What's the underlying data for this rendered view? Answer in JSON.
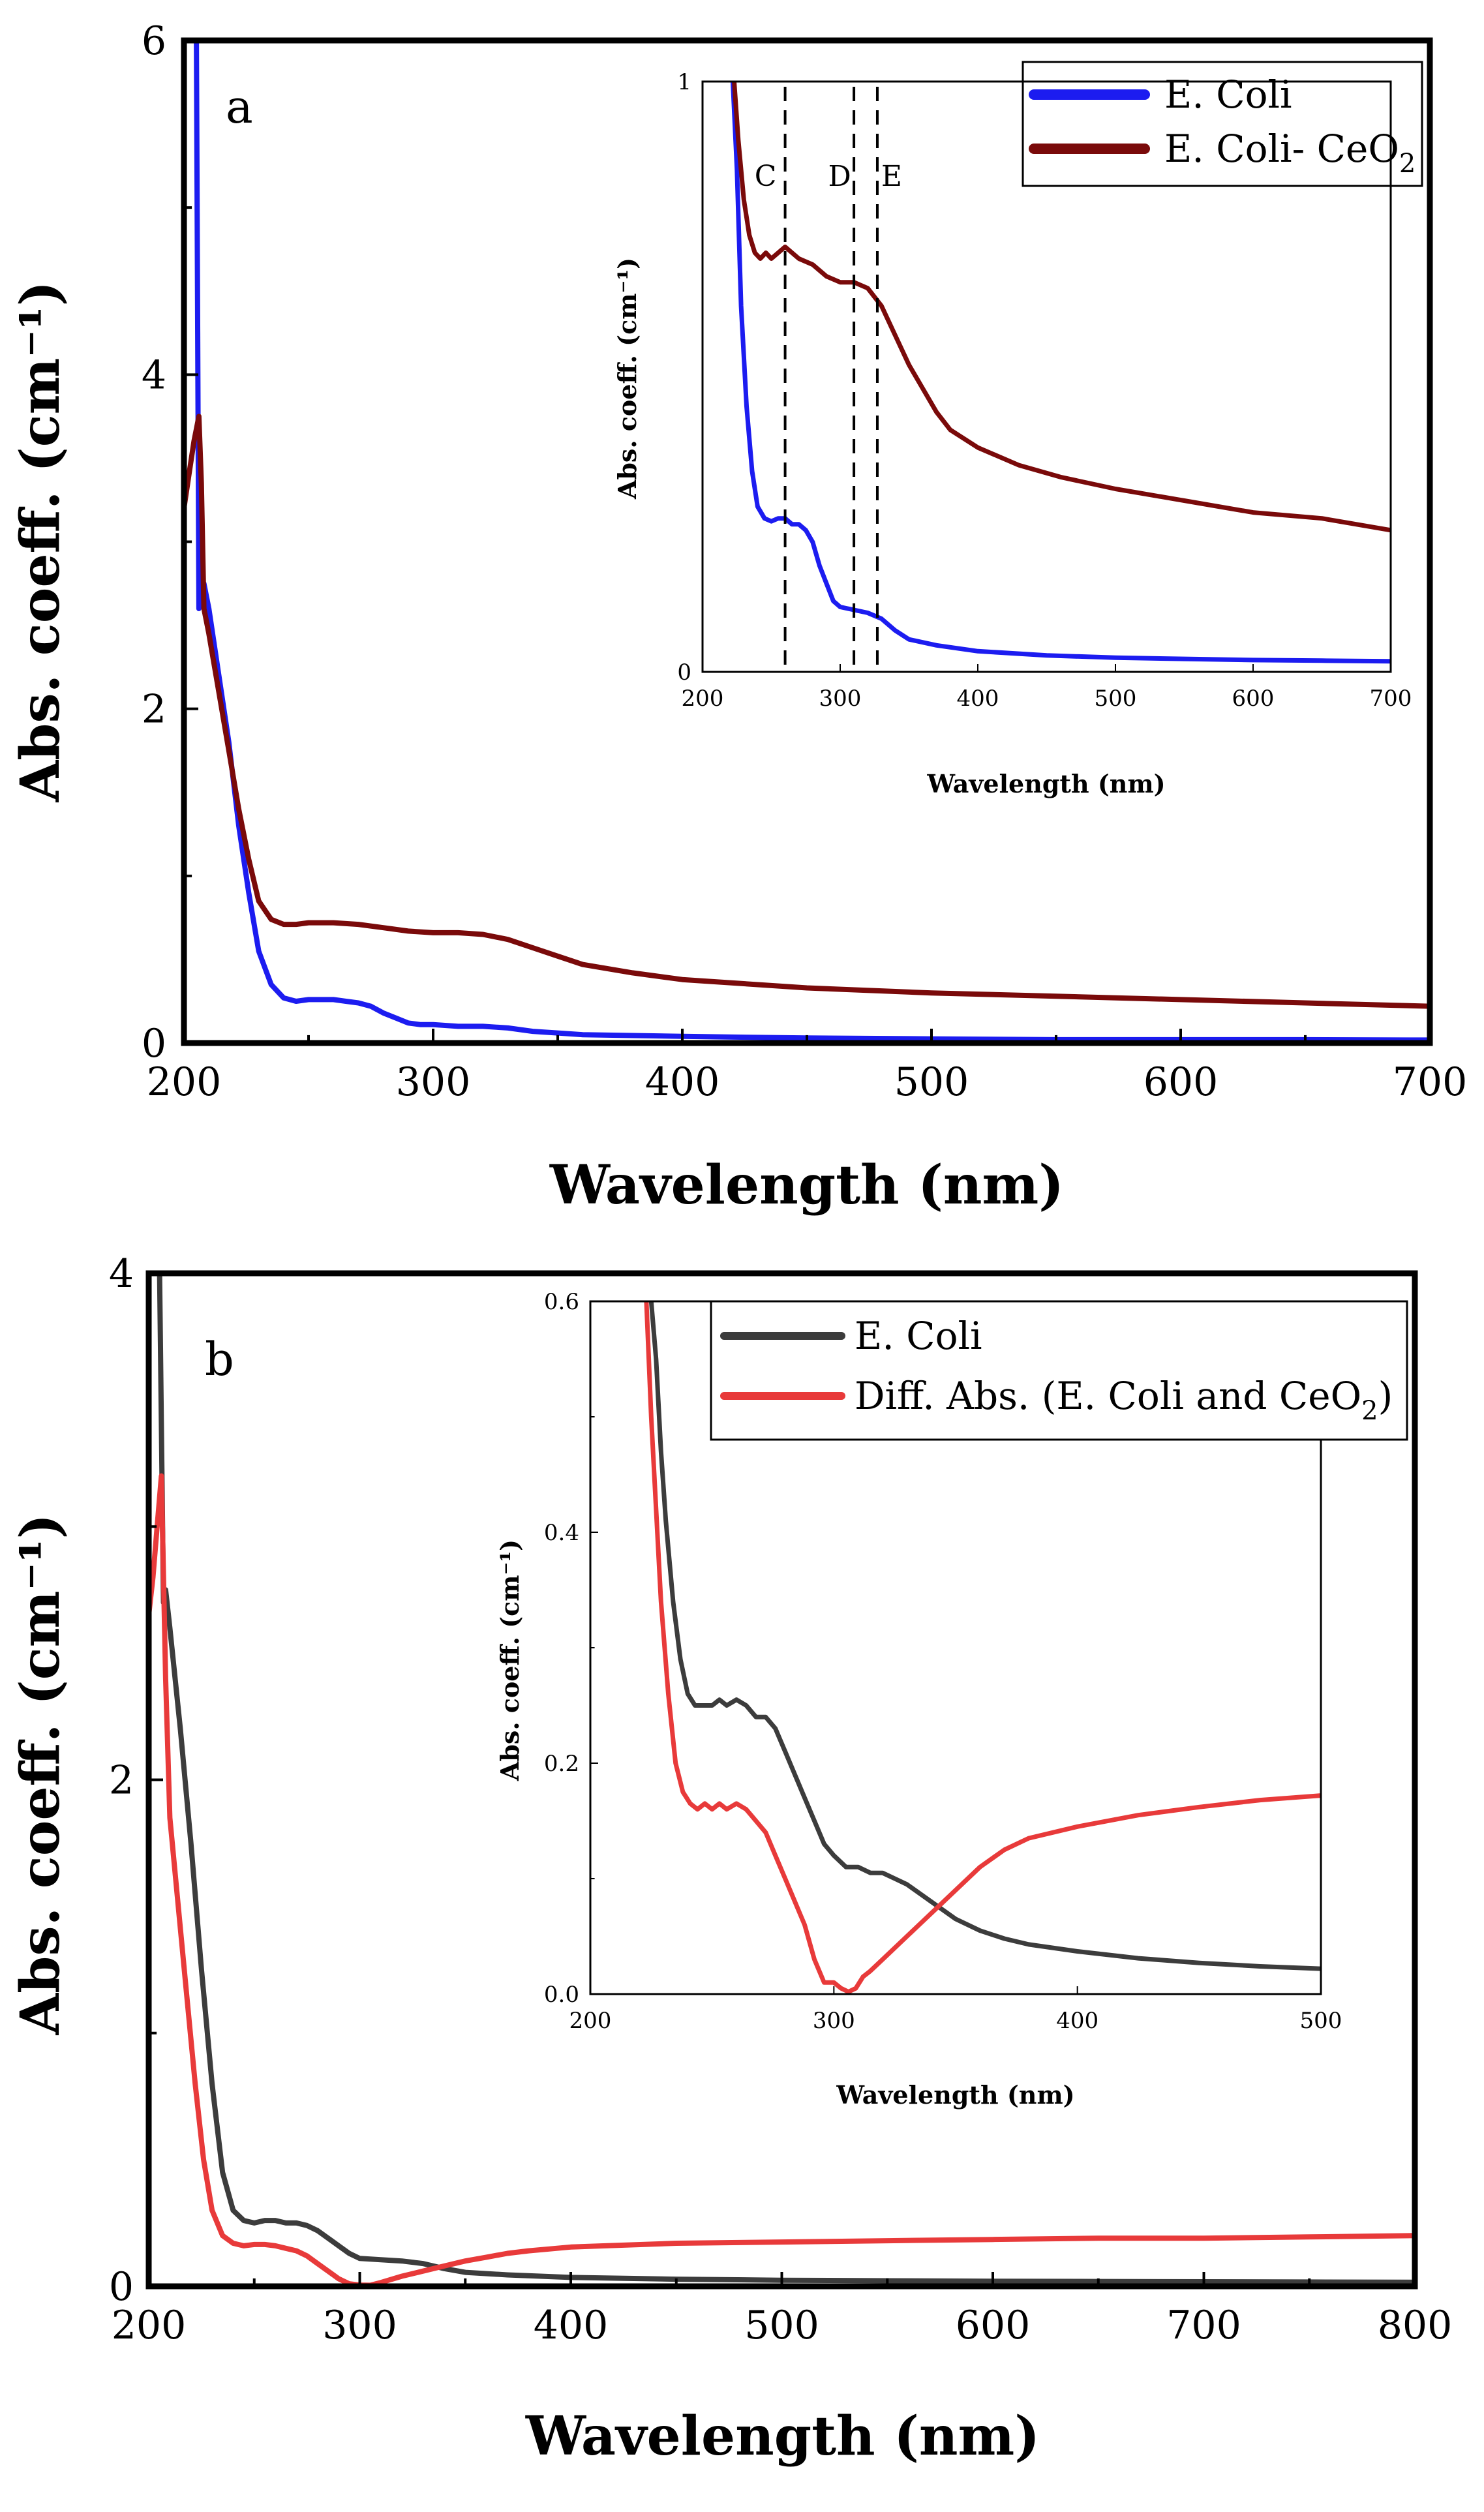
{
  "colors": {
    "blue": "#1c1cf0",
    "maroon": "#7a0a0a",
    "gray": "#3c3c3c",
    "red": "#e83a3a",
    "axis": "#000000",
    "background": "#ffffff"
  },
  "chart_data": [
    {
      "id": "a",
      "type": "line",
      "panel_label": "a",
      "xlabel": "Wavelength (nm)",
      "ylabel": "Abs. coeff. (cm⁻¹)",
      "xlim": [
        200,
        700
      ],
      "ylim": [
        0,
        6
      ],
      "xticks": [
        200,
        300,
        400,
        500,
        600,
        700
      ],
      "yticks": [
        0,
        2,
        4,
        6
      ],
      "legend_position": "top-right",
      "series": [
        {
          "name": "E. Coli",
          "legend_label": "E. Coli",
          "color": "#1c1cf0",
          "x": [
            200,
            201,
            202,
            203,
            204,
            205,
            206,
            208,
            210,
            214,
            218,
            222,
            226,
            230,
            235,
            240,
            245,
            250,
            255,
            260,
            265,
            270,
            275,
            280,
            285,
            290,
            295,
            300,
            310,
            320,
            330,
            340,
            350,
            360,
            380,
            400,
            450,
            500,
            550,
            600,
            650,
            700
          ],
          "y": [
            6.6,
            6.6,
            6.4,
            6.3,
            6.2,
            6.0,
            2.6,
            2.75,
            2.6,
            2.2,
            1.8,
            1.3,
            0.9,
            0.55,
            0.35,
            0.27,
            0.25,
            0.26,
            0.26,
            0.26,
            0.25,
            0.24,
            0.22,
            0.18,
            0.15,
            0.12,
            0.11,
            0.11,
            0.1,
            0.1,
            0.09,
            0.07,
            0.06,
            0.05,
            0.045,
            0.04,
            0.03,
            0.025,
            0.02,
            0.02,
            0.02,
            0.018
          ]
        },
        {
          "name": "E. Coli- CeO2",
          "legend_label": "E. Coli- CeO",
          "legend_sub": "2",
          "color": "#7a0a0a",
          "x": [
            200,
            202,
            204,
            206,
            207,
            208,
            210,
            214,
            218,
            222,
            226,
            230,
            235,
            240,
            245,
            250,
            255,
            260,
            270,
            280,
            290,
            300,
            310,
            320,
            330,
            340,
            350,
            360,
            380,
            400,
            450,
            500,
            550,
            600,
            650,
            700
          ],
          "y": [
            3.2,
            3.4,
            3.6,
            3.75,
            3.35,
            2.6,
            2.45,
            2.1,
            1.75,
            1.4,
            1.1,
            0.85,
            0.74,
            0.71,
            0.71,
            0.72,
            0.72,
            0.72,
            0.71,
            0.69,
            0.67,
            0.66,
            0.66,
            0.65,
            0.62,
            0.57,
            0.52,
            0.47,
            0.42,
            0.38,
            0.33,
            0.3,
            0.28,
            0.26,
            0.24,
            0.22
          ]
        }
      ]
    },
    {
      "id": "a_inset",
      "type": "line",
      "xlabel": "Wavelength (nm)",
      "ylabel": "Abs. coeff. (cm⁻¹)",
      "xlim": [
        200,
        700
      ],
      "ylim": [
        0,
        1
      ],
      "xticks": [
        200,
        300,
        400,
        500,
        600,
        700
      ],
      "yticks": [
        0,
        1
      ],
      "annotations": [
        {
          "label": "C",
          "x": 260
        },
        {
          "label": "D",
          "x": 310
        },
        {
          "label": "E",
          "x": 327
        }
      ],
      "series": [
        {
          "name": "E. Coli",
          "color": "#1c1cf0",
          "x": [
            222,
            225,
            228,
            232,
            236,
            240,
            245,
            250,
            255,
            260,
            265,
            270,
            275,
            280,
            285,
            290,
            295,
            300,
            310,
            320,
            330,
            340,
            350,
            370,
            400,
            450,
            500,
            550,
            600,
            650,
            700
          ],
          "y": [
            1.0,
            0.85,
            0.62,
            0.45,
            0.34,
            0.28,
            0.26,
            0.255,
            0.26,
            0.26,
            0.25,
            0.25,
            0.24,
            0.22,
            0.18,
            0.15,
            0.12,
            0.11,
            0.105,
            0.1,
            0.09,
            0.07,
            0.055,
            0.045,
            0.035,
            0.028,
            0.024,
            0.022,
            0.02,
            0.019,
            0.018
          ]
        },
        {
          "name": "E. Coli- CeO2",
          "color": "#7a0a0a",
          "x": [
            223,
            226,
            230,
            234,
            238,
            242,
            246,
            250,
            255,
            260,
            265,
            270,
            280,
            290,
            300,
            310,
            320,
            330,
            340,
            350,
            360,
            370,
            380,
            400,
            430,
            460,
            500,
            550,
            600,
            650,
            700
          ],
          "y": [
            1.0,
            0.9,
            0.8,
            0.74,
            0.71,
            0.7,
            0.71,
            0.7,
            0.71,
            0.72,
            0.71,
            0.7,
            0.69,
            0.67,
            0.66,
            0.66,
            0.65,
            0.62,
            0.57,
            0.52,
            0.48,
            0.44,
            0.41,
            0.38,
            0.35,
            0.33,
            0.31,
            0.29,
            0.27,
            0.26,
            0.24
          ]
        }
      ]
    },
    {
      "id": "b",
      "type": "line",
      "panel_label": "b",
      "xlabel": "Wavelength (nm)",
      "ylabel": "Abs. coeff. (cm⁻¹)",
      "xlim": [
        200,
        800
      ],
      "ylim": [
        0,
        4
      ],
      "xticks": [
        200,
        300,
        400,
        500,
        600,
        700,
        800
      ],
      "yticks": [
        0,
        2,
        4
      ],
      "legend_position": "top-right",
      "series": [
        {
          "name": "E. Coli",
          "color": "#3c3c3c",
          "x": [
            205,
            206,
            207,
            208,
            210,
            215,
            220,
            225,
            230,
            235,
            240,
            245,
            250,
            255,
            260,
            265,
            270,
            275,
            280,
            285,
            290,
            295,
            300,
            310,
            320,
            330,
            340,
            350,
            370,
            400,
            450,
            500,
            550,
            600,
            650,
            700,
            750,
            800
          ],
          "y": [
            4.1,
            3.4,
            2.7,
            2.75,
            2.6,
            2.2,
            1.75,
            1.25,
            0.8,
            0.45,
            0.3,
            0.26,
            0.25,
            0.26,
            0.26,
            0.25,
            0.25,
            0.24,
            0.22,
            0.19,
            0.16,
            0.13,
            0.11,
            0.105,
            0.1,
            0.09,
            0.07,
            0.055,
            0.045,
            0.035,
            0.028,
            0.024,
            0.022,
            0.02,
            0.019,
            0.018,
            0.017,
            0.016
          ]
        },
        {
          "name": "Diff. Abs. (E. Coli and CeO2)",
          "color": "#e83a3a",
          "x": [
            200,
            202,
            204,
            206,
            208,
            210,
            214,
            218,
            222,
            226,
            230,
            235,
            240,
            245,
            250,
            255,
            260,
            265,
            270,
            275,
            280,
            285,
            290,
            295,
            300,
            305,
            310,
            320,
            330,
            340,
            350,
            360,
            370,
            380,
            400,
            450,
            500,
            550,
            600,
            650,
            700,
            750,
            800
          ],
          "y": [
            2.65,
            2.8,
            3.0,
            3.2,
            2.4,
            1.85,
            1.5,
            1.15,
            0.8,
            0.5,
            0.3,
            0.2,
            0.17,
            0.16,
            0.165,
            0.165,
            0.16,
            0.15,
            0.14,
            0.12,
            0.09,
            0.06,
            0.03,
            0.01,
            0.005,
            0.004,
            0.015,
            0.04,
            0.06,
            0.08,
            0.1,
            0.115,
            0.13,
            0.14,
            0.155,
            0.17,
            0.175,
            0.18,
            0.185,
            0.19,
            0.19,
            0.195,
            0.2
          ]
        }
      ]
    },
    {
      "id": "b_inset",
      "type": "line",
      "xlabel": "Wavelength (nm)",
      "ylabel": "Abs. coeff. (cm⁻¹)",
      "xlim": [
        200,
        500
      ],
      "ylim": [
        0,
        0.6
      ],
      "xticks": [
        200,
        300,
        400,
        500
      ],
      "yticks": [
        0.0,
        0.2,
        0.4,
        0.6
      ],
      "ytick_labels": [
        "0.0",
        "0.2",
        "0.4",
        "0.6"
      ],
      "legend_position": "top-right",
      "series": [
        {
          "name": "E. Coli",
          "legend_label": "E. Coli",
          "color": "#3c3c3c",
          "x": [
            225,
            227,
            229,
            231,
            234,
            237,
            240,
            243,
            246,
            250,
            253,
            256,
            260,
            264,
            268,
            272,
            276,
            280,
            284,
            288,
            292,
            296,
            300,
            305,
            310,
            315,
            320,
            325,
            330,
            340,
            350,
            360,
            370,
            380,
            400,
            425,
            450,
            475,
            500
          ],
          "y": [
            0.6,
            0.55,
            0.47,
            0.41,
            0.34,
            0.29,
            0.26,
            0.25,
            0.25,
            0.25,
            0.255,
            0.25,
            0.255,
            0.25,
            0.24,
            0.24,
            0.23,
            0.21,
            0.19,
            0.17,
            0.15,
            0.13,
            0.12,
            0.11,
            0.11,
            0.105,
            0.105,
            0.1,
            0.095,
            0.08,
            0.065,
            0.055,
            0.048,
            0.043,
            0.037,
            0.031,
            0.027,
            0.024,
            0.022
          ]
        },
        {
          "name": "Diff. Abs. (E. Coli and CeO2)",
          "legend_label": "Diff. Abs. (E. Coli and CeO",
          "legend_sub": "2",
          "legend_tail": ")",
          "color": "#e83a3a",
          "x": [
            223,
            225,
            227,
            229,
            232,
            235,
            238,
            241,
            244,
            247,
            250,
            253,
            256,
            260,
            264,
            268,
            272,
            276,
            280,
            284,
            288,
            292,
            296,
            300,
            303,
            306,
            309,
            312,
            315,
            320,
            330,
            340,
            350,
            360,
            370,
            380,
            400,
            425,
            450,
            475,
            500
          ],
          "y": [
            0.6,
            0.5,
            0.42,
            0.34,
            0.26,
            0.2,
            0.175,
            0.165,
            0.16,
            0.165,
            0.16,
            0.165,
            0.16,
            0.165,
            0.16,
            0.15,
            0.14,
            0.12,
            0.1,
            0.08,
            0.06,
            0.03,
            0.01,
            0.01,
            0.005,
            0.002,
            0.005,
            0.015,
            0.02,
            0.03,
            0.05,
            0.07,
            0.09,
            0.11,
            0.125,
            0.135,
            0.145,
            0.155,
            0.162,
            0.168,
            0.172
          ]
        }
      ]
    }
  ]
}
